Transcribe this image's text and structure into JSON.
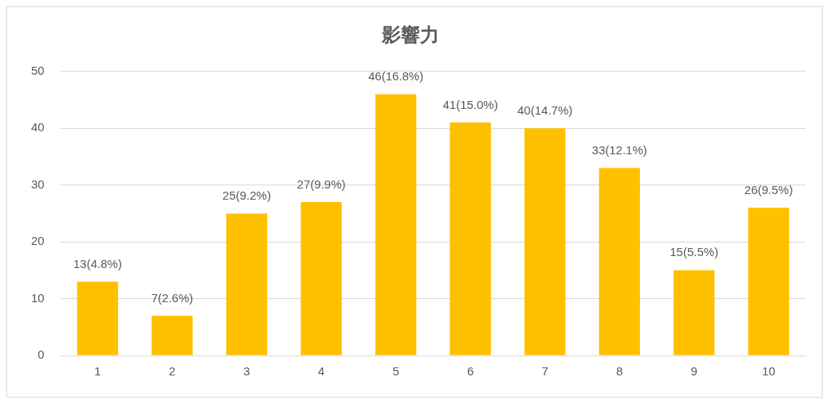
{
  "chart_data": {
    "type": "bar",
    "title": "影響力",
    "categories": [
      "1",
      "2",
      "3",
      "4",
      "5",
      "6",
      "7",
      "8",
      "9",
      "10"
    ],
    "values": [
      13,
      7,
      25,
      27,
      46,
      41,
      40,
      33,
      15,
      26
    ],
    "value_labels": [
      "13(4.8%)",
      "7(2.6%)",
      "25(9.2%)",
      "27(9.9%)",
      "46(16.8%)",
      "41(15.0%)",
      "40(14.7%)",
      "33(12.1%)",
      "15(5.5%)",
      "26(9.5%)"
    ],
    "color": "#ffc000",
    "ylim": [
      0,
      50
    ],
    "yticks": [
      0,
      10,
      20,
      30,
      40,
      50
    ],
    "grid": "y",
    "legend": false
  }
}
